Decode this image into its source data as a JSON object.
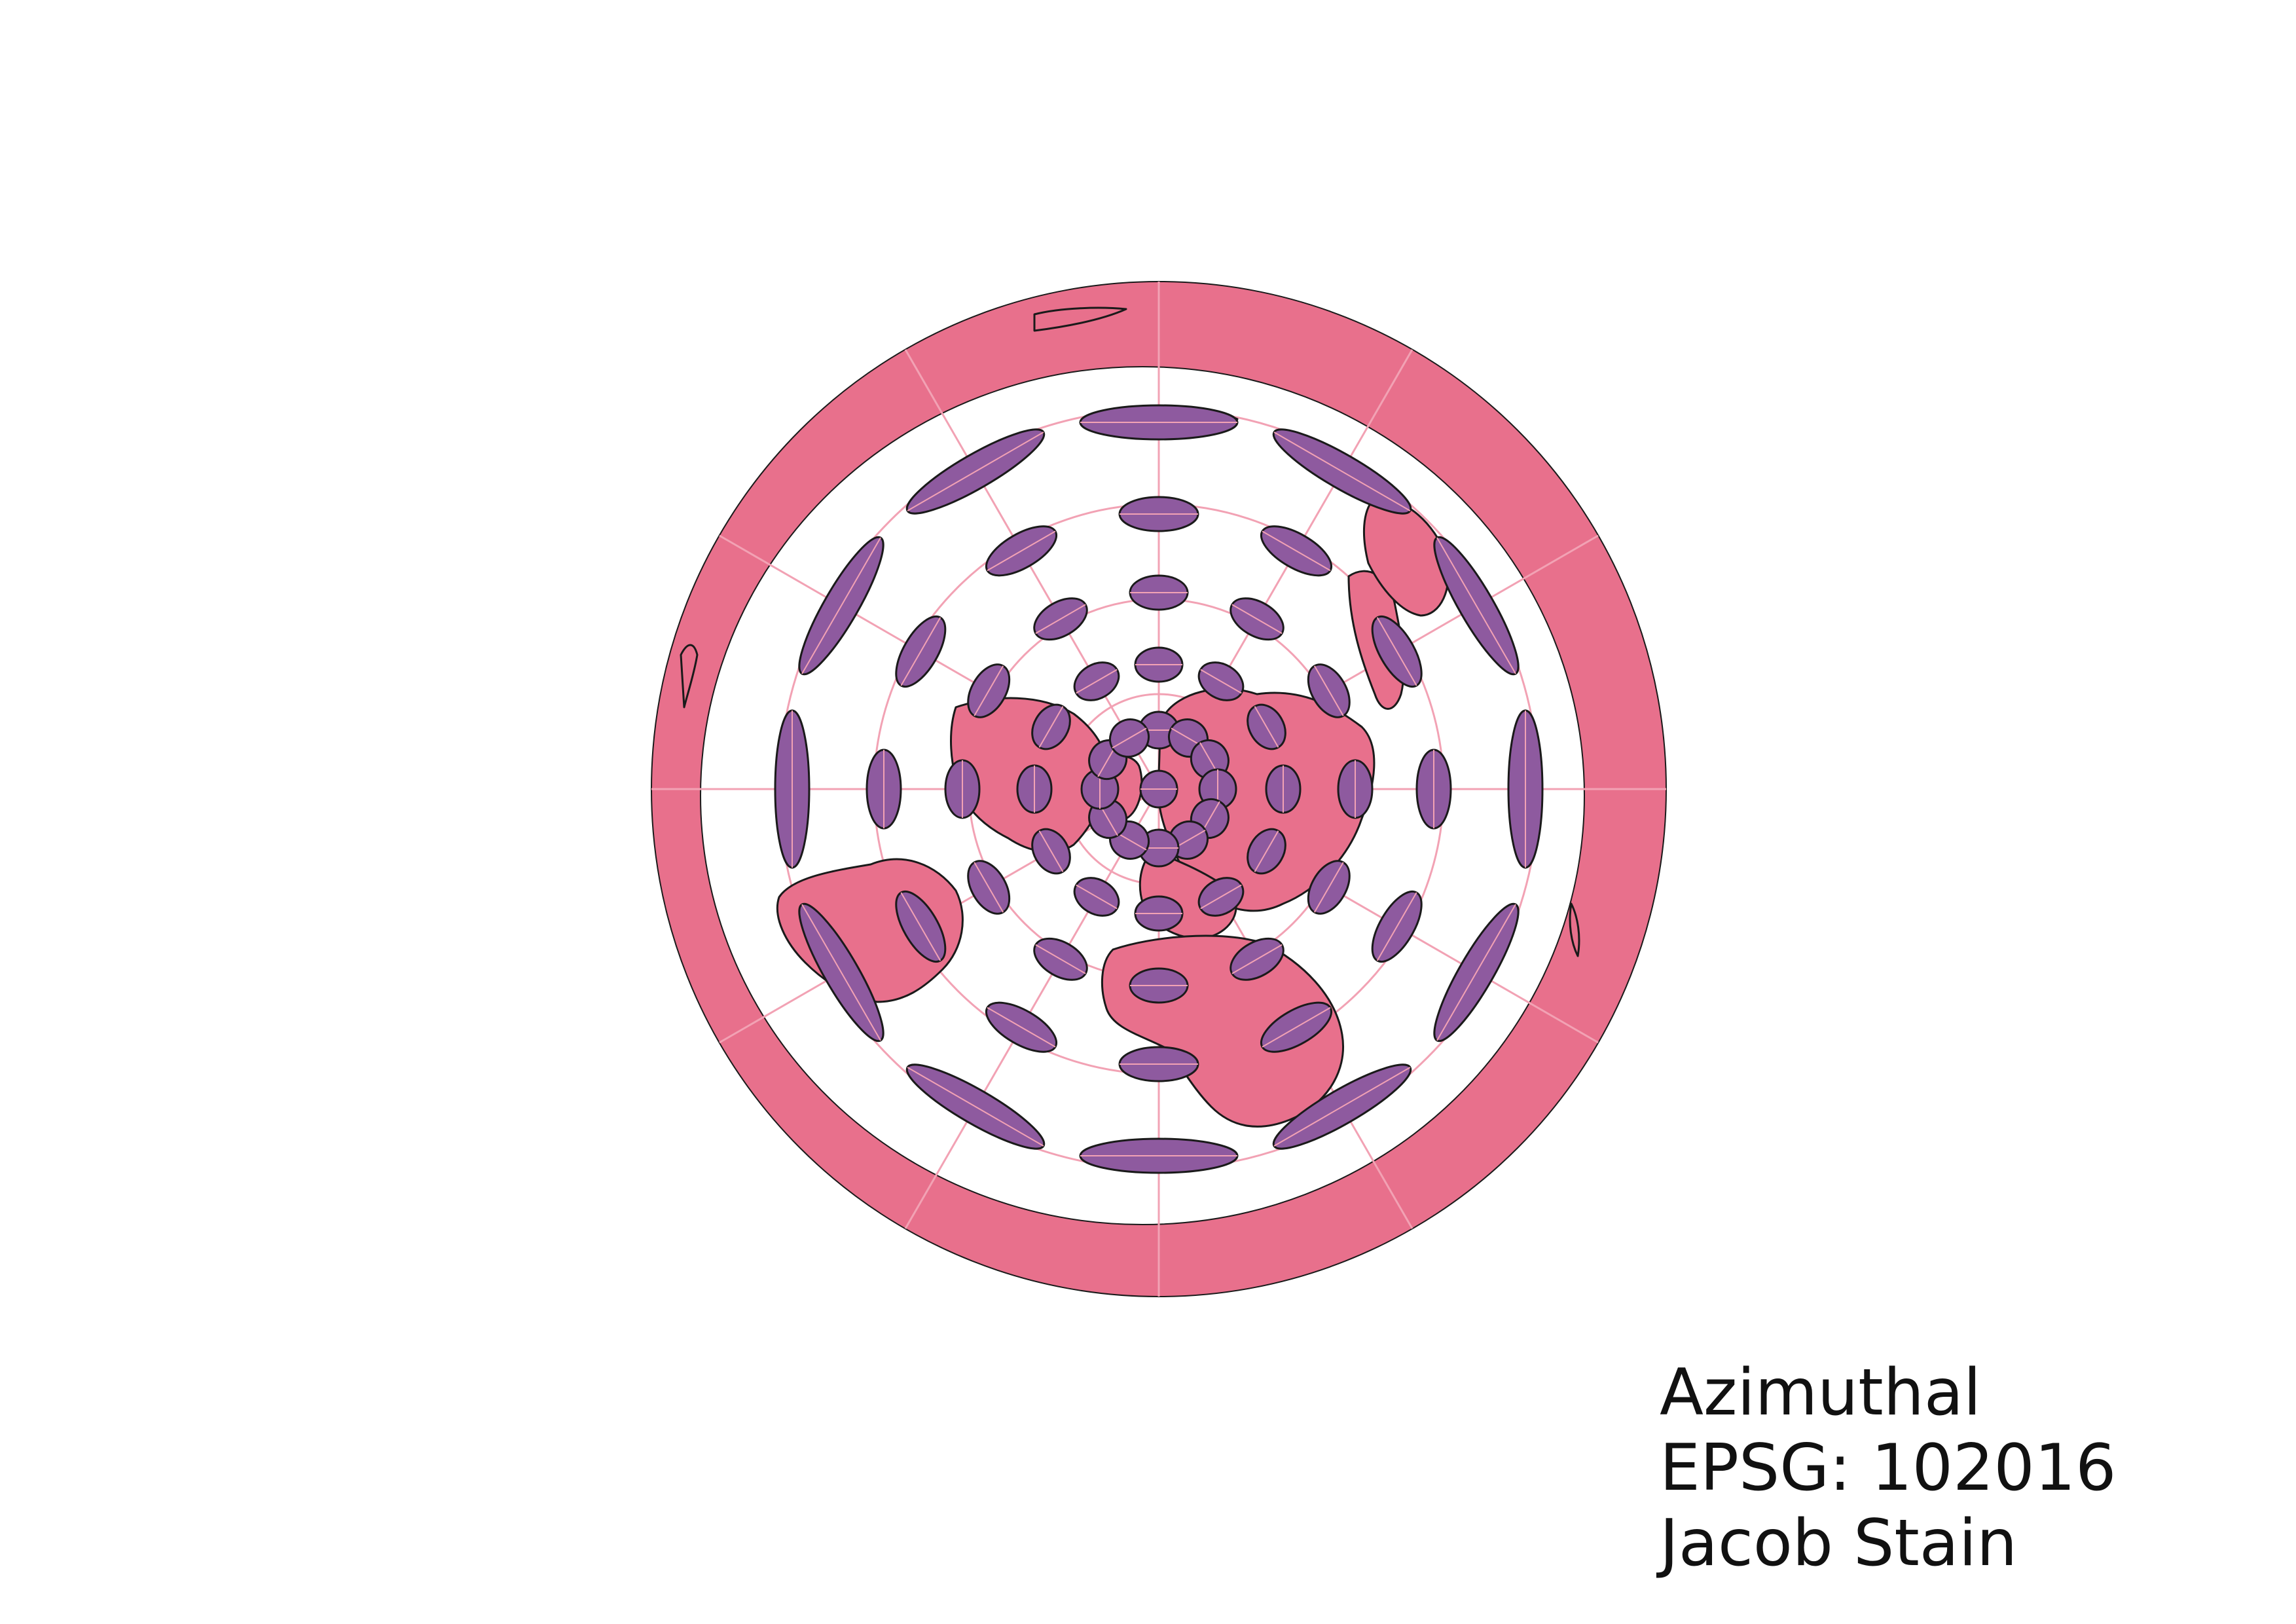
{
  "caption": {
    "line1": "Azimuthal",
    "line2": "EPSG: 102016",
    "line3": "Jacob Stain"
  },
  "colors": {
    "background": "#ffffff",
    "land": "#e8708c",
    "outer_ring": "#e8708c",
    "ocean": "#ffffff",
    "graticule": "#f2a2b4",
    "tissot_fill": "#8e5a9f",
    "outline": "#1a1a1a"
  },
  "map": {
    "projection": "Azimuthal Equidistant (North Pole)",
    "center": "North Pole",
    "features": [
      "country-boundaries",
      "graticule",
      "tissot-indicatrices"
    ]
  }
}
